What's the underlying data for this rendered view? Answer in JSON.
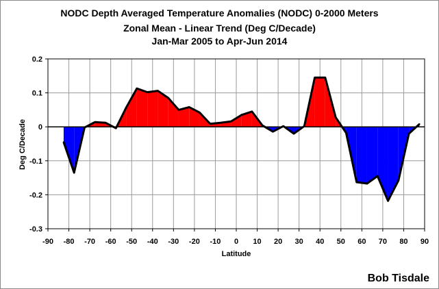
{
  "chart_data": {
    "type": "area",
    "title": [
      "NODC Depth Averaged Temperature Anomalies (NODC) 0-2000 Meters",
      "Zonal Mean - Linear Trend (Deg C/Decade)",
      "Jan-Mar 2005 to Apr-Jun 2014"
    ],
    "xlabel": "Latitude",
    "ylabel": "Deg C/Decade",
    "xlim": [
      -90,
      90
    ],
    "ylim": [
      -0.3,
      0.2
    ],
    "xticks": [
      "-90",
      "-80",
      "-70",
      "-60",
      "-50",
      "-40",
      "-30",
      "-20",
      "-10",
      "0",
      "10",
      "20",
      "30",
      "40",
      "50",
      "60",
      "70",
      "80",
      "90"
    ],
    "yticks": [
      "-0.3",
      "-0.2",
      "-0.1",
      "0",
      "0.1",
      "0.2"
    ],
    "grid": true,
    "positive_color": "#ff0000",
    "negative_color": "#0000ff",
    "line_color": "#000000",
    "x": [
      -82.5,
      -77.5,
      -72.5,
      -67.5,
      -62.5,
      -57.5,
      -52.5,
      -47.5,
      -42.5,
      -37.5,
      -32.5,
      -27.5,
      -22.5,
      -17.5,
      -12.5,
      -7.5,
      -2.5,
      2.5,
      7.5,
      12.5,
      17.5,
      22.5,
      27.5,
      32.5,
      37.5,
      42.5,
      47.5,
      52.5,
      57.5,
      62.5,
      67.5,
      72.5,
      77.5,
      82.5,
      87.5
    ],
    "values": [
      -0.045,
      -0.135,
      -0.002,
      0.014,
      0.012,
      -0.004,
      0.058,
      0.113,
      0.102,
      0.106,
      0.085,
      0.05,
      0.058,
      0.042,
      0.009,
      0.012,
      0.016,
      0.035,
      0.045,
      0.004,
      -0.014,
      0.002,
      -0.02,
      0.002,
      0.145,
      0.145,
      0.028,
      -0.018,
      -0.163,
      -0.167,
      -0.145,
      -0.218,
      -0.158,
      -0.02,
      0.008
    ]
  },
  "credit": "Bob Tisdale"
}
